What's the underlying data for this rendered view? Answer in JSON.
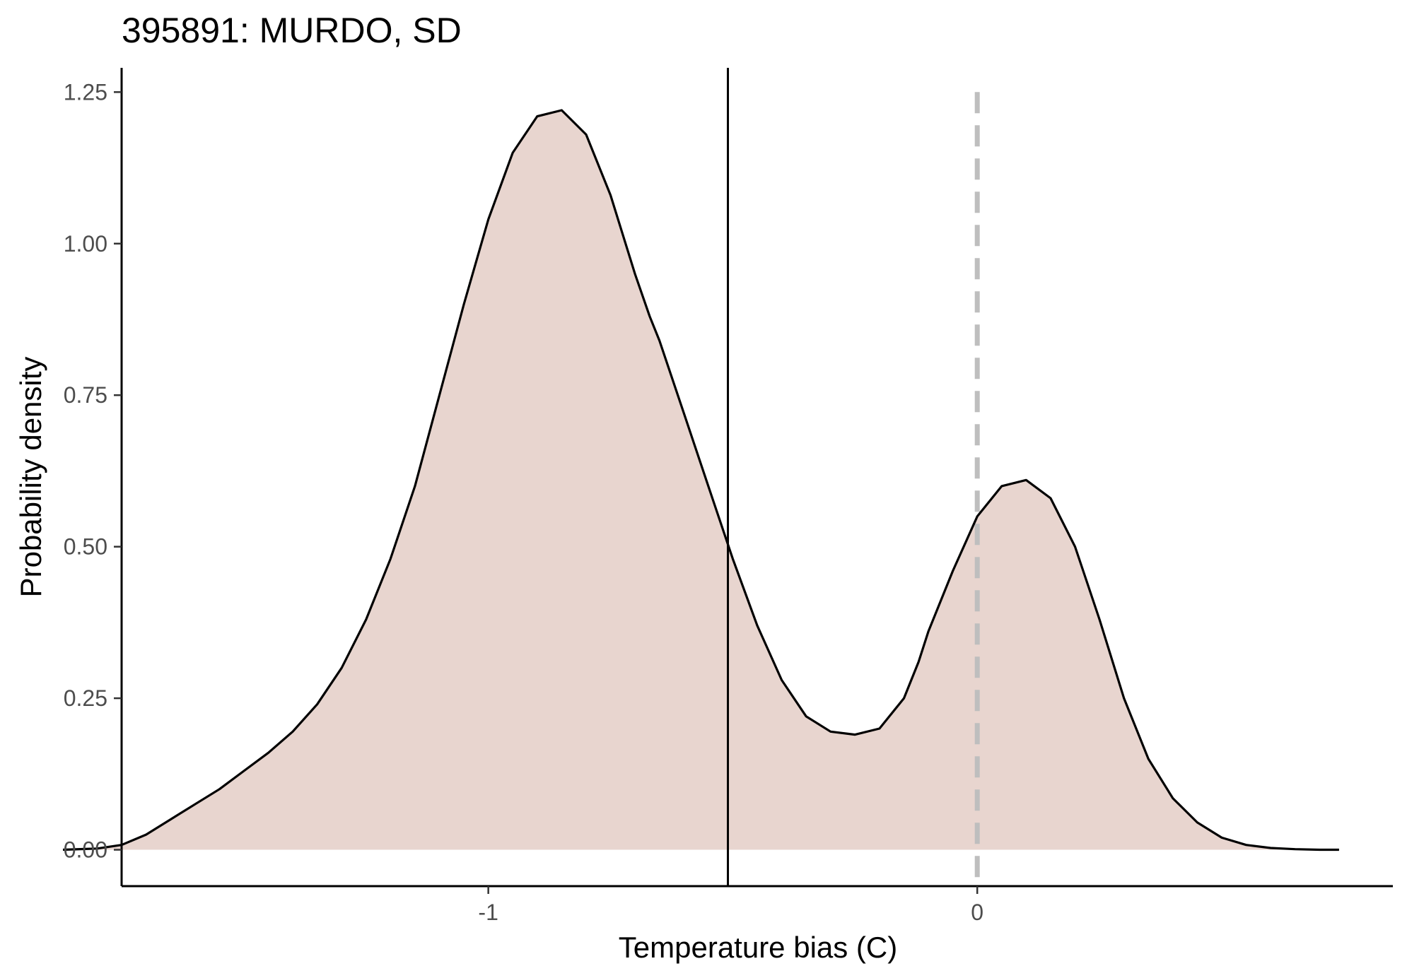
{
  "chart_data": {
    "type": "area",
    "title": "395891: MURDO, SD",
    "xlabel": "Temperature bias (C)",
    "ylabel": "Probability density",
    "xlim": [
      -1.75,
      0.85
    ],
    "ylim": [
      -0.06,
      1.29
    ],
    "x_ticks": [
      -1,
      0
    ],
    "x_tick_labels": [
      "-1",
      "0"
    ],
    "y_ticks": [
      0,
      0.25,
      0.5,
      0.75,
      1.0,
      1.25
    ],
    "y_tick_labels": [
      "0.00",
      "0.25",
      "0.50",
      "0.75",
      "1.00",
      "1.25"
    ],
    "grid": false,
    "legend": "none",
    "fill_color": "#e8d5cf",
    "line_color": "#000000",
    "density": {
      "x": [
        -1.87,
        -1.8,
        -1.75,
        -1.7,
        -1.65,
        -1.6,
        -1.55,
        -1.5,
        -1.45,
        -1.4,
        -1.35,
        -1.3,
        -1.25,
        -1.2,
        -1.15,
        -1.1,
        -1.05,
        -1.0,
        -0.95,
        -0.9,
        -0.85,
        -0.8,
        -0.75,
        -0.7,
        -0.67,
        -0.65,
        -0.6,
        -0.55,
        -0.5,
        -0.45,
        -0.4,
        -0.35,
        -0.3,
        -0.25,
        -0.2,
        -0.15,
        -0.12,
        -0.1,
        -0.05,
        0.0,
        0.05,
        0.1,
        0.15,
        0.2,
        0.25,
        0.3,
        0.35,
        0.4,
        0.45,
        0.5,
        0.55,
        0.6,
        0.65,
        0.7,
        0.74
      ],
      "y": [
        0.0,
        0.002,
        0.008,
        0.025,
        0.05,
        0.075,
        0.1,
        0.13,
        0.16,
        0.195,
        0.24,
        0.3,
        0.38,
        0.48,
        0.6,
        0.75,
        0.9,
        1.04,
        1.15,
        1.21,
        1.22,
        1.18,
        1.08,
        0.95,
        0.88,
        0.84,
        0.72,
        0.6,
        0.48,
        0.37,
        0.28,
        0.22,
        0.195,
        0.19,
        0.2,
        0.25,
        0.31,
        0.36,
        0.46,
        0.55,
        0.6,
        0.61,
        0.58,
        0.5,
        0.38,
        0.25,
        0.15,
        0.085,
        0.045,
        0.02,
        0.008,
        0.003,
        0.001,
        0.0,
        0.0
      ]
    },
    "mean_line_x": -0.51,
    "reference_line_x": 0,
    "reference_line_color": "#bebebe"
  }
}
